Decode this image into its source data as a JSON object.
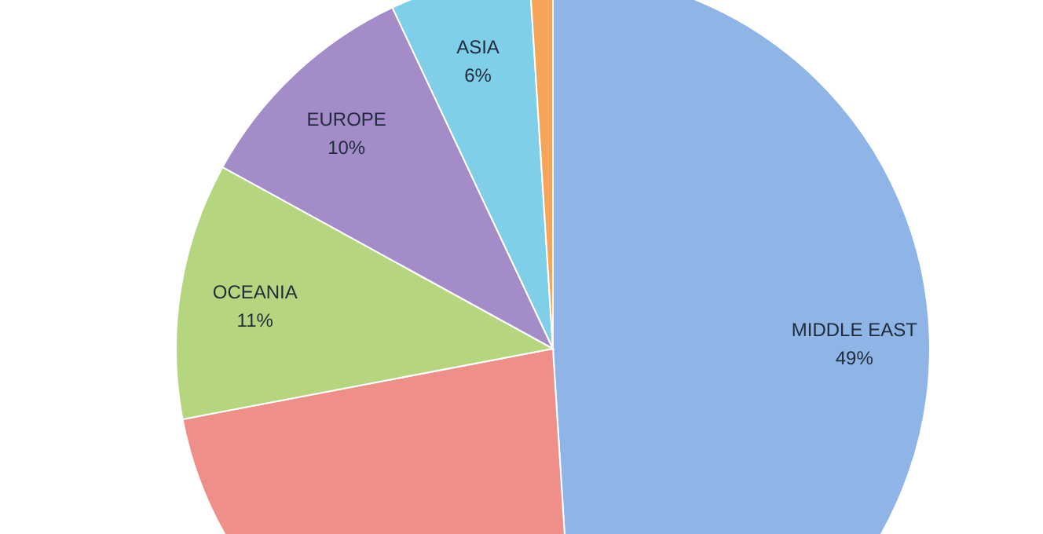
{
  "chart_data": {
    "type": "pie",
    "categories": [
      "MIDDLE EAST",
      null,
      "OCEANIA",
      "EUROPE",
      "ASIA",
      null
    ],
    "values": [
      49,
      23,
      11,
      10,
      6,
      1
    ],
    "colors": [
      "#8fb4e6",
      "#ee8f89",
      "#b5d67e",
      "#a48cc8",
      "#7fcfe8",
      "#f5a55a"
    ],
    "value_labels": [
      "49%",
      null,
      "11%",
      "10%",
      "6%",
      null
    ]
  }
}
